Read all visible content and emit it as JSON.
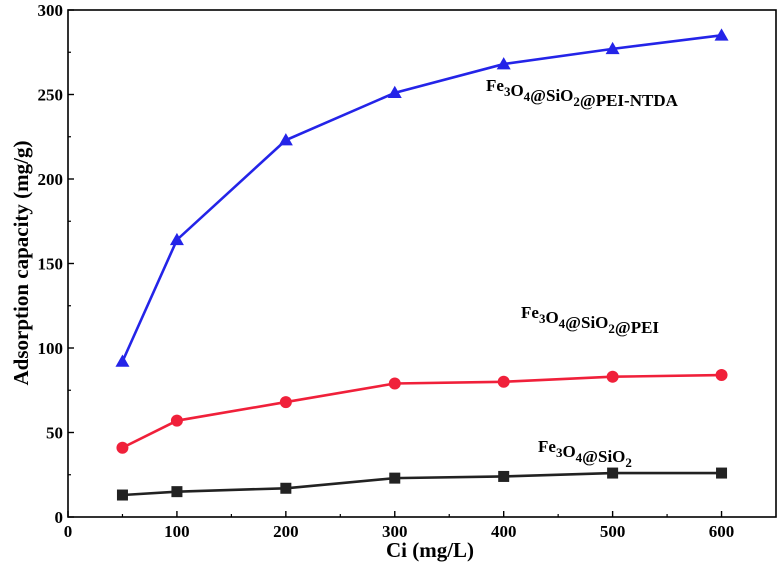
{
  "chart_data": {
    "type": "line",
    "xlabel": "Ci (mg/L)",
    "ylabel": "Adsorption capacity (mg/g)",
    "xlim": [
      0,
      650
    ],
    "ylim": [
      0,
      300
    ],
    "x_ticks": [
      0,
      100,
      200,
      300,
      400,
      500,
      600
    ],
    "y_ticks": [
      0,
      50,
      100,
      150,
      200,
      250,
      300
    ],
    "grid": false,
    "x": [
      50,
      100,
      200,
      300,
      400,
      500,
      600
    ],
    "series": [
      {
        "name": "Fe3O4@SiO2@PEI-NTDA",
        "color": "#2424e8",
        "marker": "triangle",
        "values": [
          92,
          164,
          223,
          251,
          268,
          277,
          285
        ]
      },
      {
        "name": "Fe3O4@SiO2@PEI",
        "color": "#f0203a",
        "marker": "circle",
        "values": [
          41,
          57,
          68,
          79,
          80,
          83,
          84
        ]
      },
      {
        "name": "Fe3O4@SiO2",
        "color": "#222222",
        "marker": "square",
        "values": [
          13,
          15,
          17,
          23,
          24,
          26,
          26
        ]
      }
    ]
  }
}
